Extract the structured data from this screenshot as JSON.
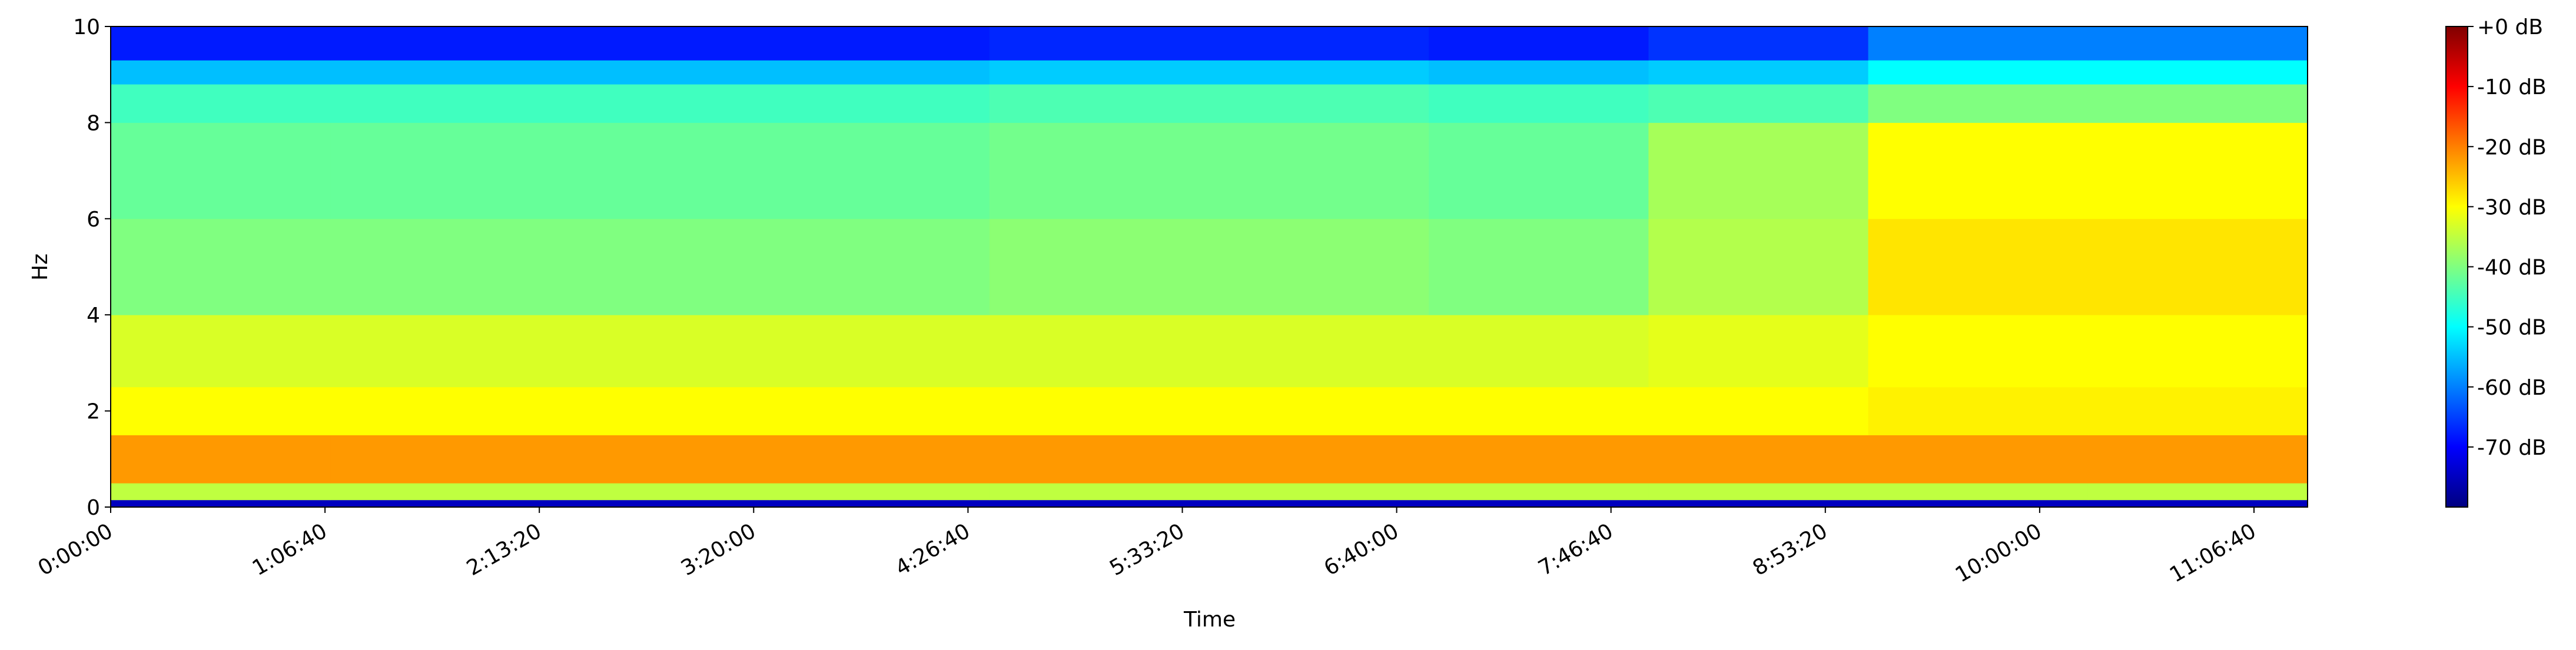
{
  "chart_data": {
    "type": "heatmap",
    "x_label": "Time",
    "y_label": "Hz",
    "xlim": [
      0,
      41000
    ],
    "ylim": [
      0,
      10
    ],
    "xticks": [
      {
        "value": 0,
        "label": "0:00:00"
      },
      {
        "value": 4000,
        "label": "1:06:40"
      },
      {
        "value": 8000,
        "label": "2:13:20"
      },
      {
        "value": 12000,
        "label": "3:20:00"
      },
      {
        "value": 16000,
        "label": "4:26:40"
      },
      {
        "value": 20000,
        "label": "5:33:20"
      },
      {
        "value": 24000,
        "label": "6:40:00"
      },
      {
        "value": 28000,
        "label": "7:46:40"
      },
      {
        "value": 32000,
        "label": "8:53:20"
      },
      {
        "value": 36000,
        "label": "10:00:00"
      },
      {
        "value": 40000,
        "label": "11:06:40"
      }
    ],
    "yticks": [
      0,
      2,
      4,
      6,
      8,
      10
    ],
    "x_edges": [
      0,
      4100,
      8200,
      12300,
      16400,
      20500,
      24600,
      28700,
      32800,
      36900,
      41000
    ],
    "y_edges": [
      0,
      0.15,
      0.5,
      1.5,
      2.5,
      4,
      6,
      8,
      8.8,
      9.3,
      10
    ],
    "z": [
      [
        -75,
        -75,
        -75,
        -75,
        -75,
        -75,
        -75,
        -75,
        -75,
        -75
      ],
      [
        -35,
        -35,
        -35,
        -35,
        -35,
        -35,
        -35,
        -35,
        -35,
        -35
      ],
      [
        -22,
        -22,
        -22,
        -22,
        -22,
        -22,
        -22,
        -22,
        -22,
        -22
      ],
      [
        -30,
        -30,
        -30,
        -30,
        -30,
        -30,
        -30,
        -30,
        -29,
        -29
      ],
      [
        -33,
        -33,
        -33,
        -33,
        -33,
        -33,
        -33,
        -32,
        -30,
        -30
      ],
      [
        -40,
        -40,
        -40,
        -40,
        -39,
        -39,
        -40,
        -36,
        -28,
        -28
      ],
      [
        -42,
        -42,
        -42,
        -42,
        -41,
        -41,
        -42,
        -37,
        -30,
        -30
      ],
      [
        -45,
        -45,
        -45,
        -45,
        -44,
        -44,
        -45,
        -44,
        -40,
        -40
      ],
      [
        -55,
        -55,
        -55,
        -55,
        -54,
        -54,
        -55,
        -54,
        -50,
        -50
      ],
      [
        -68,
        -68,
        -68,
        -68,
        -67,
        -67,
        -68,
        -66,
        -60,
        -60
      ]
    ],
    "colorbar": {
      "colormap": "jet",
      "clim": [
        -80,
        0
      ],
      "ticks": [
        {
          "value": 0,
          "label": "+0 dB"
        },
        {
          "value": -10,
          "label": "-10 dB"
        },
        {
          "value": -20,
          "label": "-20 dB"
        },
        {
          "value": -30,
          "label": "-30 dB"
        },
        {
          "value": -40,
          "label": "-40 dB"
        },
        {
          "value": -50,
          "label": "-50 dB"
        },
        {
          "value": -60,
          "label": "-60 dB"
        },
        {
          "value": -70,
          "label": "-70 dB"
        }
      ]
    }
  }
}
